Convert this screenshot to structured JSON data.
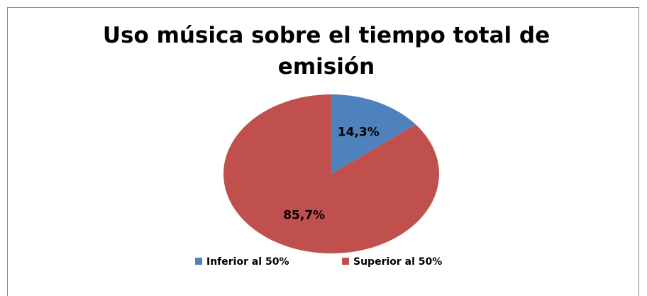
{
  "chart_data": {
    "type": "pie",
    "title": "Uso música sobre el tiempo total de emisión",
    "categories": [
      "Inferior al 50%",
      "Superior al 50%"
    ],
    "values": [
      14.3,
      85.7
    ],
    "value_labels": [
      "14,3%",
      "85,7%"
    ],
    "colors": [
      "#4f81bd",
      "#c0504d"
    ],
    "legend": "bottom"
  }
}
